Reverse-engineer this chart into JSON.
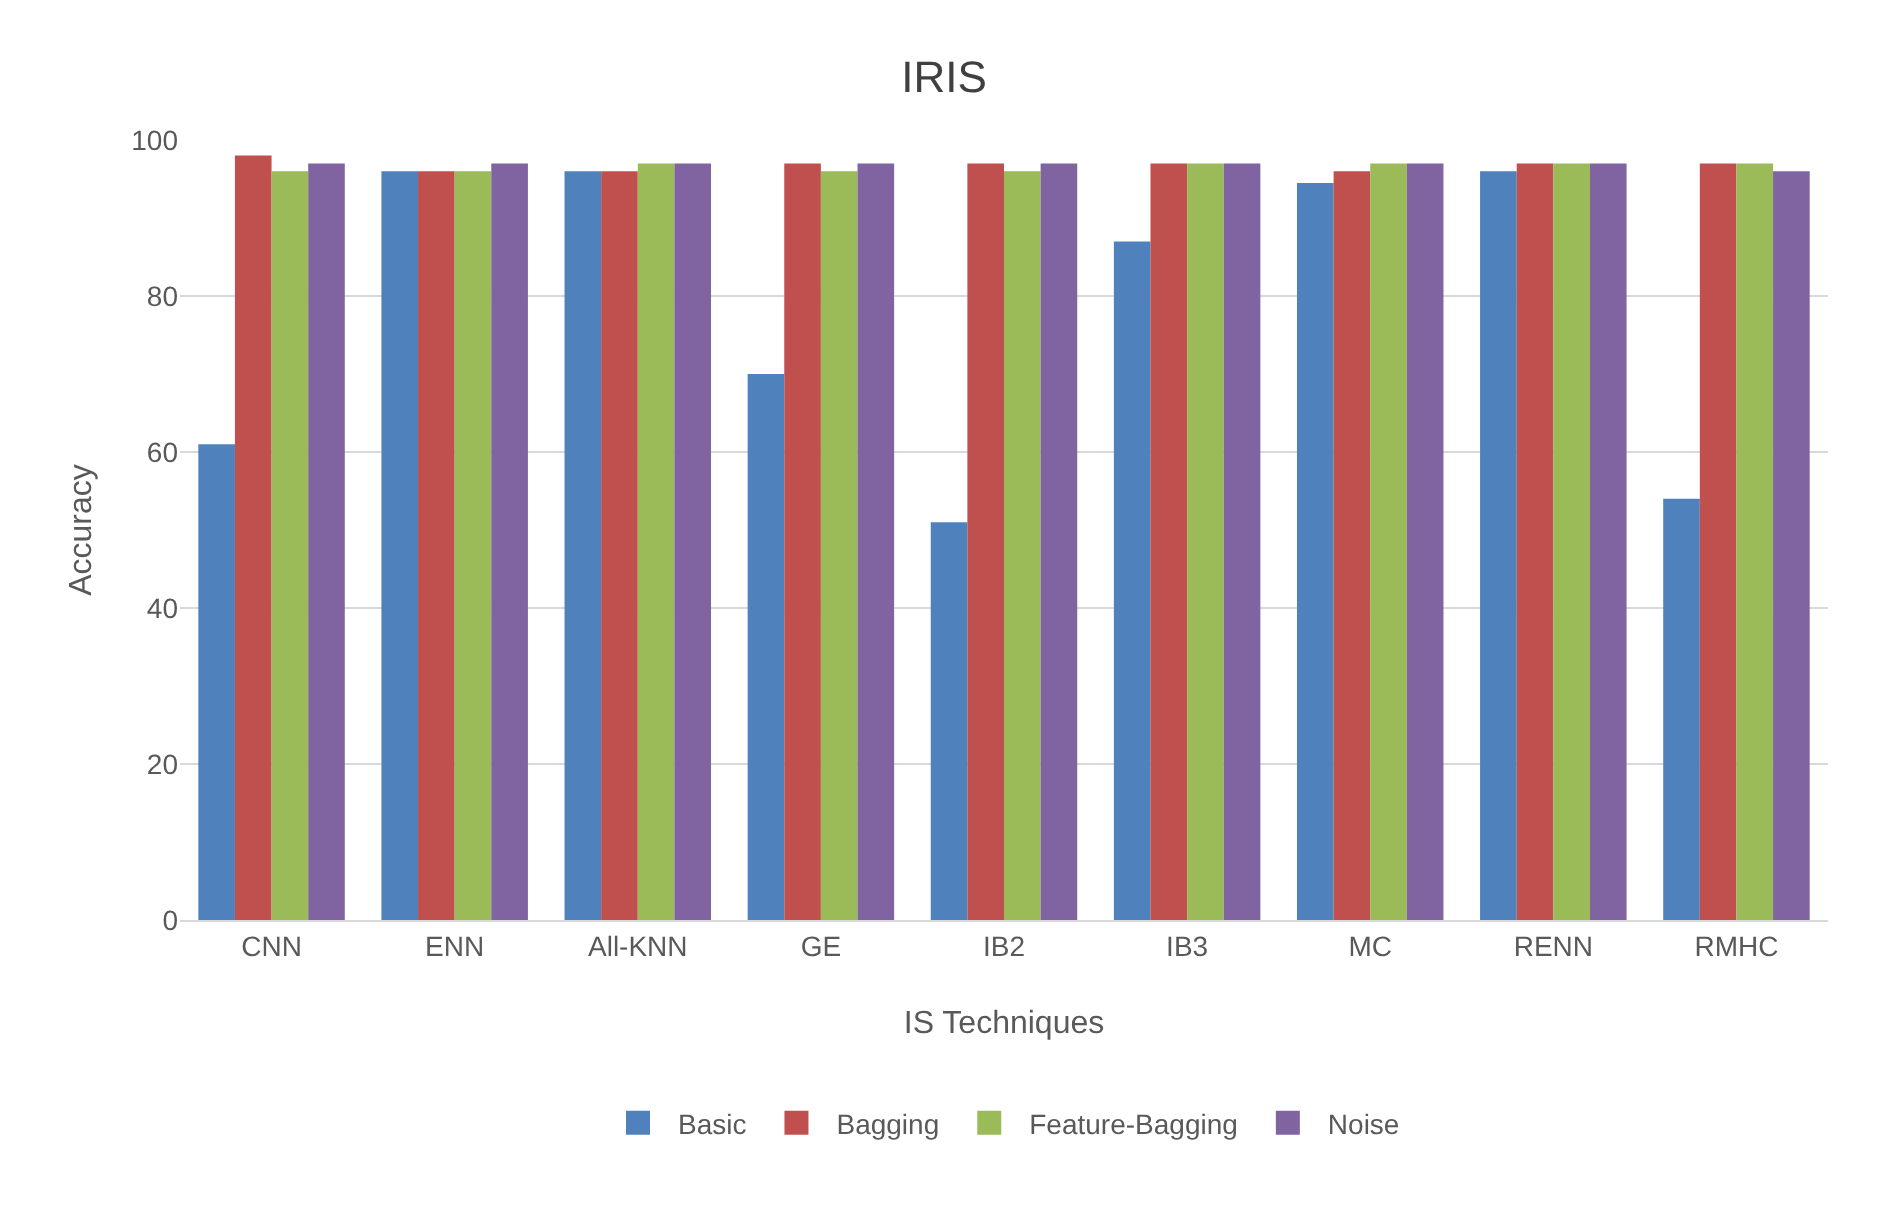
{
  "chart_data": {
    "type": "bar",
    "title": "IRIS",
    "xlabel": "IS Techniques",
    "ylabel": "Accuracy",
    "categories": [
      "CNN",
      "ENN",
      "All-KNN",
      "GE",
      "IB2",
      "IB3",
      "MC",
      "RENN",
      "RMHC"
    ],
    "series": [
      {
        "name": "Basic",
        "color": "#4f81bd",
        "values": [
          61,
          96,
          96,
          70,
          51,
          87,
          94.5,
          96,
          54
        ]
      },
      {
        "name": "Bagging",
        "color": "#c0504d",
        "values": [
          98,
          96,
          96,
          97,
          97,
          97,
          96,
          97,
          97
        ]
      },
      {
        "name": "Feature-Bagging",
        "color": "#9bbb59",
        "values": [
          96,
          96,
          97,
          96,
          96,
          97,
          97,
          97,
          97
        ]
      },
      {
        "name": "Noise",
        "color": "#8064a2",
        "values": [
          97,
          97,
          97,
          97,
          97,
          97,
          97,
          97,
          96
        ]
      }
    ],
    "ylim": [
      0,
      100
    ],
    "yticks": [
      0,
      20,
      40,
      60,
      80,
      100
    ],
    "grid": "y",
    "legend": "bottom"
  }
}
